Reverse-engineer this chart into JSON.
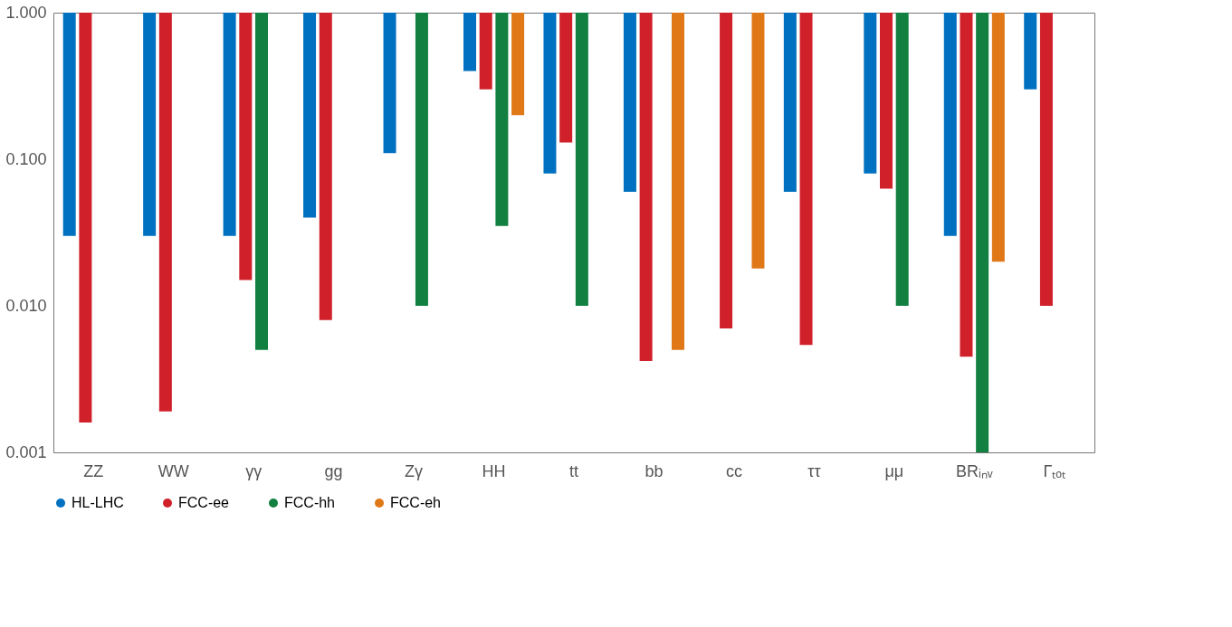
{
  "chart_data": {
    "type": "bar",
    "categories": [
      "ZZ",
      "WW",
      "γγ",
      "gg",
      "Zγ",
      "HH",
      "tt",
      "bb",
      "cc",
      "ττ",
      "μμ",
      "BRᵢₙᵥ",
      "Γₜₒₜ"
    ],
    "series": [
      {
        "name": "HL-LHC",
        "color": "#0070c0",
        "base": [
          1,
          1,
          1,
          1,
          1,
          1,
          1,
          1,
          null,
          1,
          1,
          1,
          1
        ],
        "values": [
          -0.97,
          -0.97,
          -0.97,
          -0.96,
          -0.89,
          -0.6,
          -0.92,
          -0.94,
          null,
          -0.94,
          -0.92,
          -0.97,
          -0.7
        ]
      },
      {
        "name": "FCC-ee",
        "color": "#d0202a",
        "base": [
          1,
          1,
          1,
          1,
          null,
          1,
          1,
          1,
          1,
          1,
          1,
          1,
          1
        ],
        "values": [
          -0.9984,
          -0.9981,
          -0.985,
          -0.992,
          null,
          -0.7,
          -0.87,
          -0.9958,
          -0.993,
          -0.9946,
          -0.937,
          -0.9955,
          -0.99
        ]
      },
      {
        "name": "FCC-hh",
        "color": "#128040",
        "base": [
          null,
          null,
          1,
          null,
          1,
          1,
          1,
          null,
          null,
          null,
          1,
          1,
          null
        ],
        "values": [
          null,
          null,
          -0.995,
          null,
          -0.99,
          -0.965,
          -0.99,
          null,
          null,
          null,
          -0.99,
          -0.999,
          null
        ]
      },
      {
        "name": "FCC-eh",
        "color": "#e07818",
        "base": [
          null,
          null,
          null,
          null,
          null,
          1,
          null,
          1,
          1,
          null,
          null,
          1,
          null
        ],
        "values": [
          null,
          null,
          null,
          null,
          null,
          -0.8,
          null,
          -0.995,
          -0.982,
          null,
          null,
          -0.98,
          null
        ]
      }
    ],
    "log": "y",
    "ylim": [
      0.001,
      1
    ],
    "yticks": [
      {
        "value": 1,
        "label": "1.000"
      },
      {
        "value": 0.1,
        "label": "0.100"
      },
      {
        "value": 0.01,
        "label": "0.010"
      },
      {
        "value": 0.001,
        "label": "0.001"
      }
    ],
    "legend": "bottom",
    "grid": false
  }
}
